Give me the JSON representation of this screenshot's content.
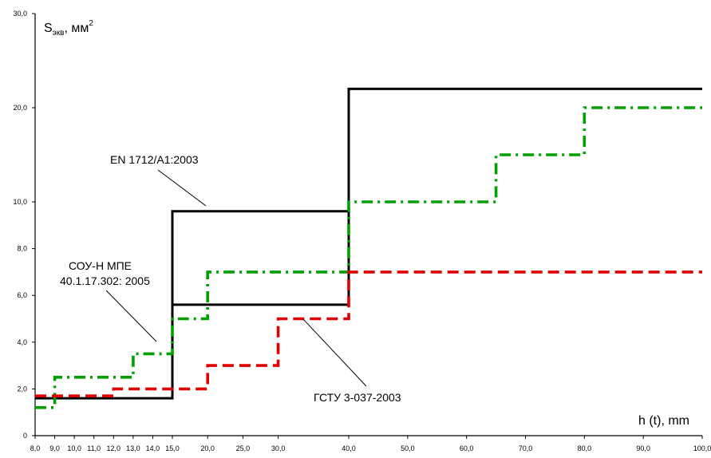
{
  "chart_data": {
    "type": "line",
    "ylabel_main": "S",
    "ylabel_sub": "экв",
    "ylabel_unit": ", мм",
    "ylabel_sup": "2",
    "xlabel": "h (t), mm",
    "x_ticks": [
      "8,0",
      "9,0",
      "10,0",
      "11,0",
      "12,0",
      "13,0",
      "14,0",
      "15,0",
      "20,0",
      "25,0",
      "30,0",
      "40,0",
      "50,0",
      "60,0",
      "70,0",
      "80,0",
      "90,0",
      "100,0"
    ],
    "y_ticks": [
      "0",
      "2,0",
      "4,0",
      "6,0",
      "8,0",
      "10,0",
      "20,0",
      "30,0"
    ],
    "series": [
      {
        "name": "EN 1712/A1:2003 (upper)",
        "color": "#000000",
        "style": "solid",
        "points": [
          [
            8,
            1.6
          ],
          [
            15,
            1.6
          ],
          [
            15,
            9.6
          ],
          [
            40,
            9.6
          ],
          [
            40,
            22
          ],
          [
            100,
            22
          ]
        ]
      },
      {
        "name": "EN 1712/A1:2003 (lower)",
        "color": "#000000",
        "style": "solid",
        "points": [
          [
            15,
            5.6
          ],
          [
            40,
            5.6
          ],
          [
            40,
            9.6
          ]
        ]
      },
      {
        "name": "СОУ-Н МПЕ 40.1.17.302: 2005",
        "color": "#00a000",
        "style": "dashdot",
        "points": [
          [
            8,
            1.2
          ],
          [
            9,
            1.2
          ],
          [
            9,
            2.5
          ],
          [
            13,
            2.5
          ],
          [
            13,
            3.5
          ],
          [
            15,
            3.5
          ],
          [
            15,
            5
          ],
          [
            20,
            5
          ],
          [
            20,
            7
          ],
          [
            40,
            7
          ],
          [
            40,
            10
          ],
          [
            65,
            10
          ],
          [
            65,
            15
          ],
          [
            80,
            15
          ],
          [
            80,
            20
          ],
          [
            100,
            20
          ]
        ]
      },
      {
        "name": "ГСТУ 3-037-2003",
        "color": "#e00000",
        "style": "dashed",
        "points": [
          [
            8,
            1.7
          ],
          [
            12,
            1.7
          ],
          [
            12,
            2
          ],
          [
            20,
            2
          ],
          [
            20,
            3
          ],
          [
            30,
            3
          ],
          [
            30,
            5
          ],
          [
            40,
            5
          ],
          [
            40,
            7
          ],
          [
            100,
            7
          ]
        ]
      }
    ],
    "annotations": [
      {
        "lines": [
          "EN 1712/A1:2003"
        ]
      },
      {
        "lines": [
          "СОУ-Н МПЕ",
          "40.1.17.302: 2005"
        ]
      },
      {
        "lines": [
          "ГСТУ 3-037-2003"
        ]
      }
    ]
  }
}
